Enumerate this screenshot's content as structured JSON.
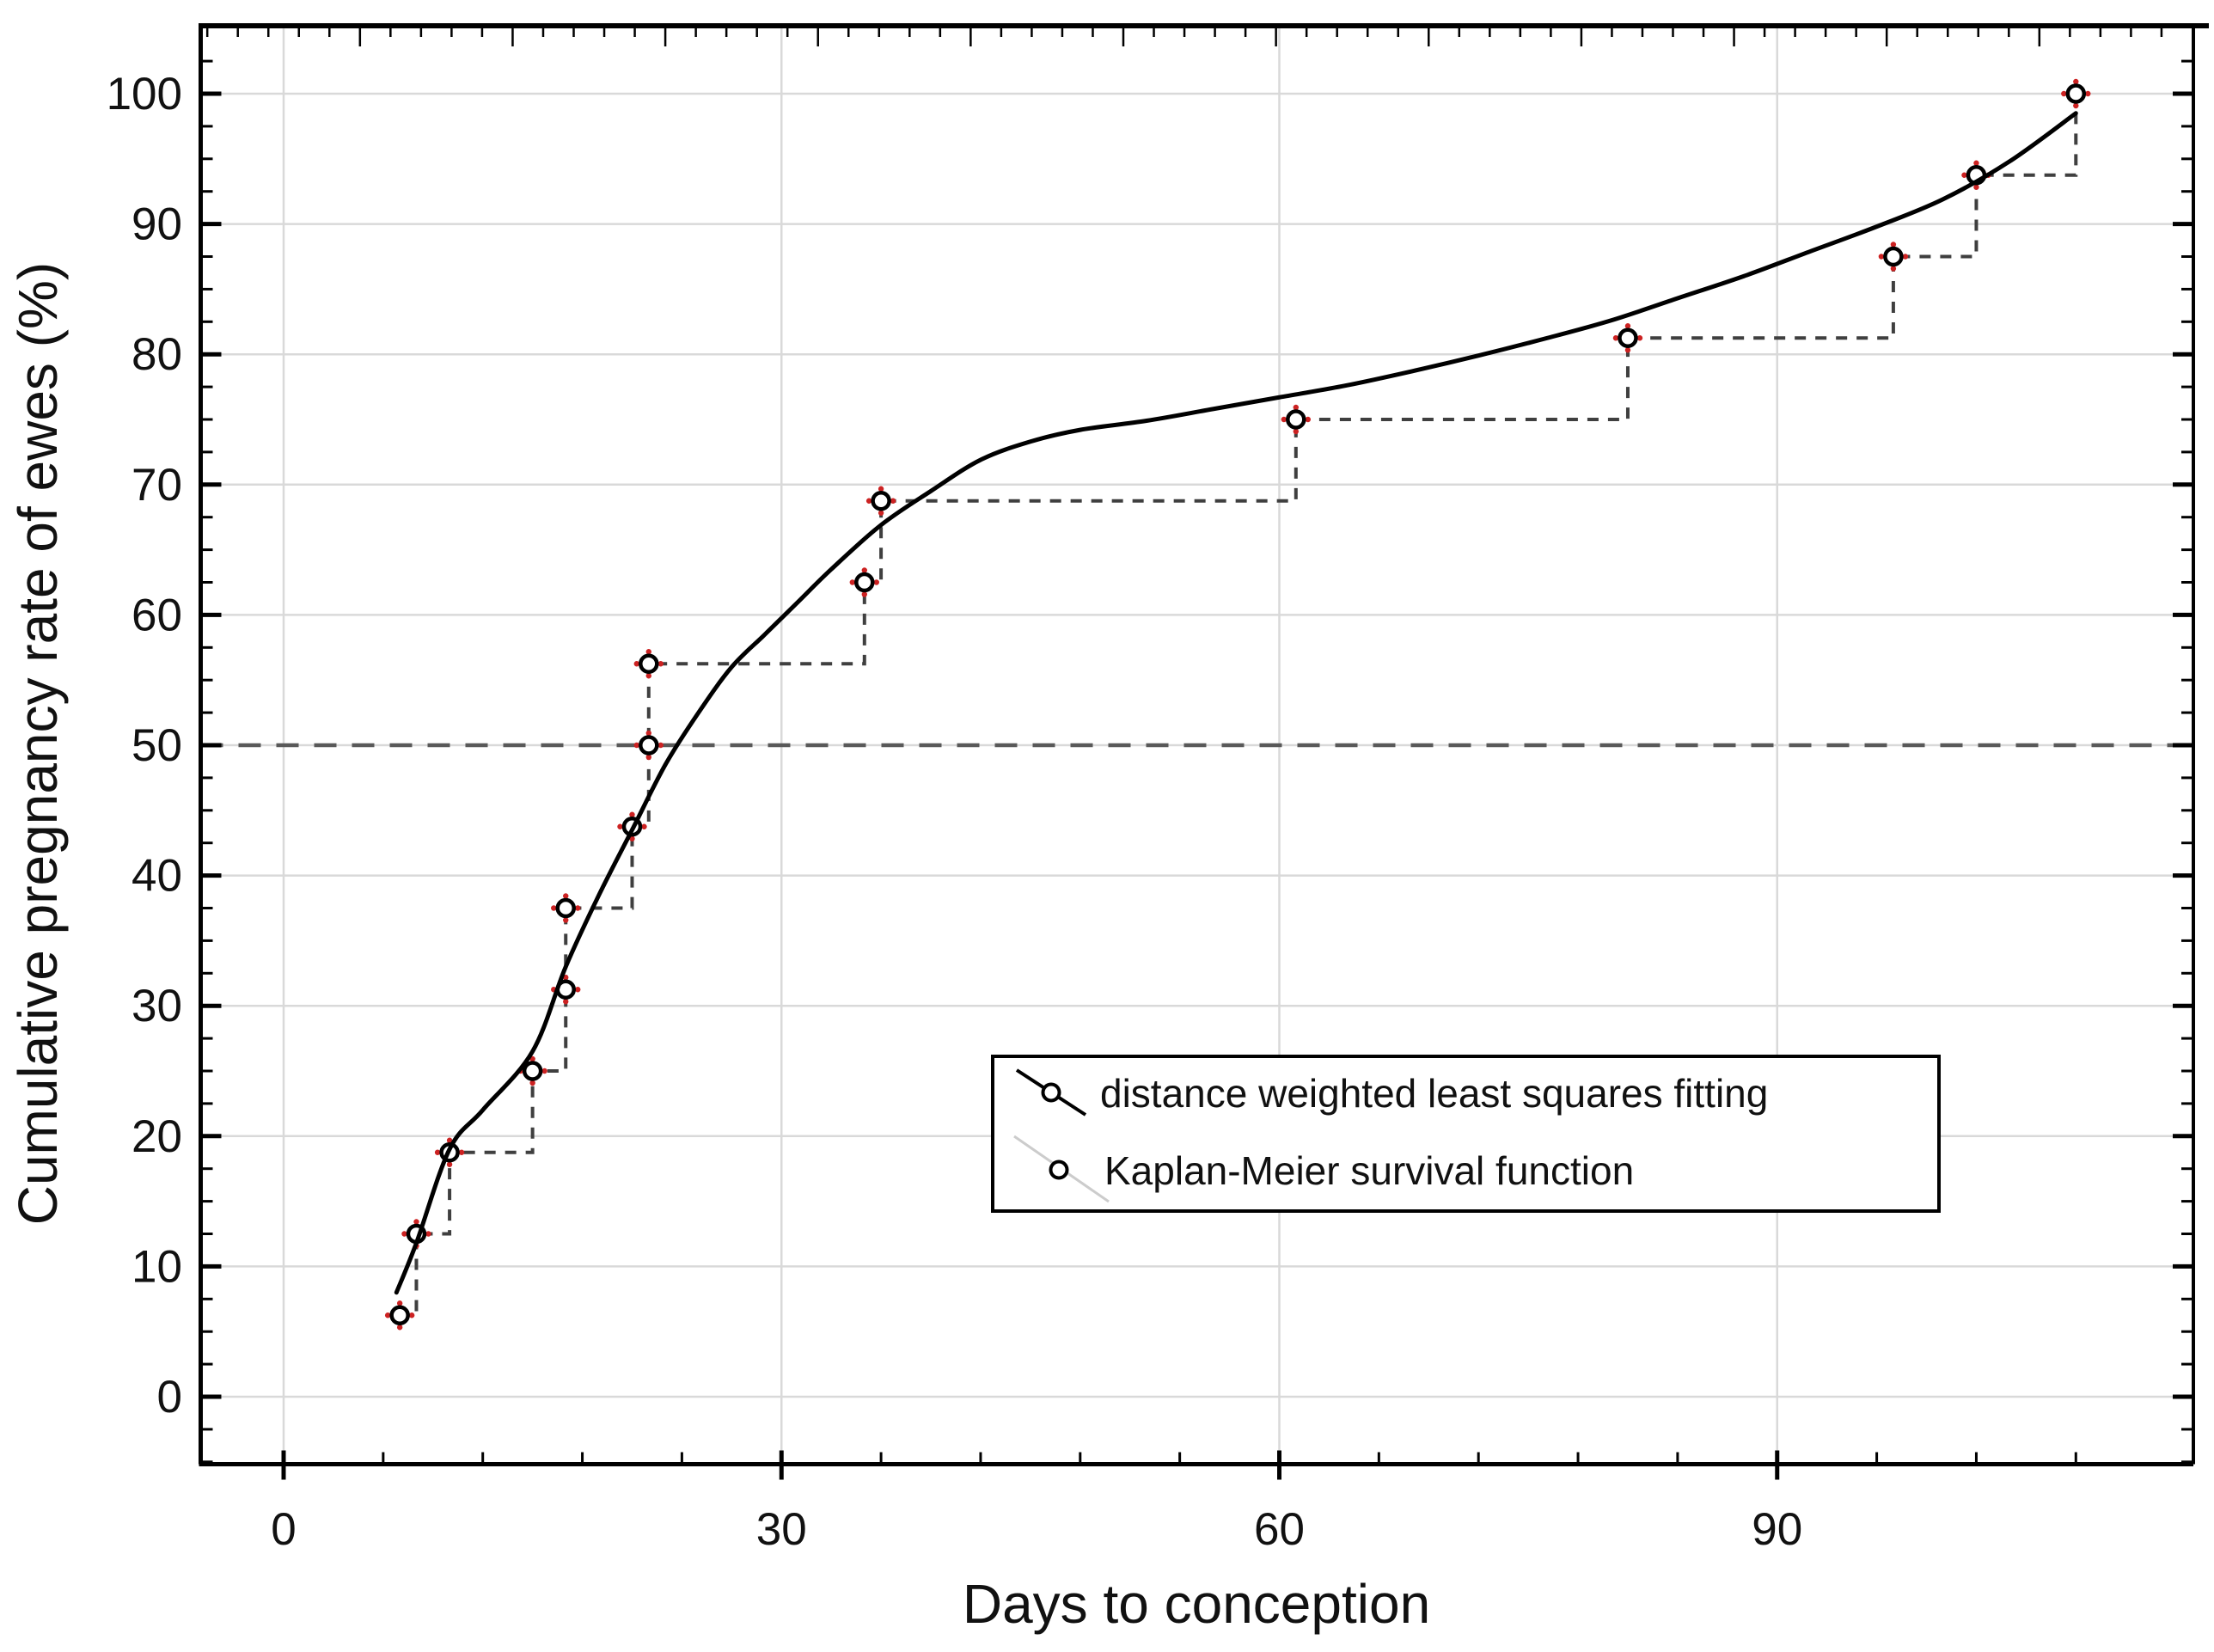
{
  "chart_data": {
    "type": "line",
    "title": "",
    "xlabel": "Days to conception",
    "ylabel": "Cumulative pregnancy rate of ewes (%)",
    "xlim": [
      -5,
      115
    ],
    "ylim": [
      -5.2,
      105.3
    ],
    "x_ticks_major": [
      0,
      30,
      60,
      90
    ],
    "x_minor_step": 6,
    "y_ticks_major": [
      0,
      10,
      20,
      30,
      40,
      50,
      60,
      70,
      80,
      90,
      100
    ],
    "y_minor_step": 2.5,
    "grid": true,
    "reference_line": {
      "y": 50,
      "style": "long-dash"
    },
    "legend_position": "inside-lower-right",
    "series": [
      {
        "name": "distance weighted least squares fitting",
        "type": "smooth_line",
        "color": "#000000",
        "points": [
          [
            6.8,
            8
          ],
          [
            8,
            11.8
          ],
          [
            10,
            19
          ],
          [
            12,
            22
          ],
          [
            15,
            26.5
          ],
          [
            17,
            33
          ],
          [
            19,
            38.5
          ],
          [
            21,
            43.5
          ],
          [
            23,
            48.5
          ],
          [
            25,
            52.5
          ],
          [
            27,
            56
          ],
          [
            29,
            58.5
          ],
          [
            31,
            61
          ],
          [
            33,
            63.5
          ],
          [
            36,
            66.9
          ],
          [
            39,
            69.5
          ],
          [
            42,
            71.9
          ],
          [
            45,
            73.3
          ],
          [
            48,
            74.2
          ],
          [
            52,
            74.9
          ],
          [
            56,
            75.8
          ],
          [
            60,
            76.7
          ],
          [
            64,
            77.6
          ],
          [
            68,
            78.7
          ],
          [
            72,
            79.9
          ],
          [
            76,
            81.2
          ],
          [
            80,
            82.6
          ],
          [
            84,
            84.3
          ],
          [
            88,
            86
          ],
          [
            92,
            87.9
          ],
          [
            96,
            89.8
          ],
          [
            100,
            91.9
          ],
          [
            104,
            94.8
          ],
          [
            108,
            98.5
          ]
        ]
      },
      {
        "name": "Kaplan-Meier survival function",
        "type": "step_markers",
        "marker": "open-circle",
        "line_style": "dashed",
        "color": "#3f3f3f",
        "marker_accent": "#cc2222",
        "points": [
          [
            7,
            6.25
          ],
          [
            8,
            12.5
          ],
          [
            10,
            18.75
          ],
          [
            15,
            25
          ],
          [
            17,
            31.25
          ],
          [
            17,
            37.5
          ],
          [
            21,
            43.75
          ],
          [
            22,
            50
          ],
          [
            22,
            56.25
          ],
          [
            35,
            62.5
          ],
          [
            36,
            68.75
          ],
          [
            61,
            75
          ],
          [
            81,
            81.25
          ],
          [
            97,
            87.5
          ],
          [
            102,
            93.75
          ],
          [
            108,
            100
          ]
        ]
      }
    ]
  },
  "colors": {
    "background": "#ffffff",
    "grid": "#d9d9d9",
    "spine": "#000000",
    "dashed_step": "#3f3f3f",
    "reference_line": "#595959",
    "marker_ring": "#000000",
    "marker_fill": "#ffffff",
    "marker_accent": "#cc2222",
    "text": "#111111",
    "legend_faint_line": "#cccccc"
  }
}
